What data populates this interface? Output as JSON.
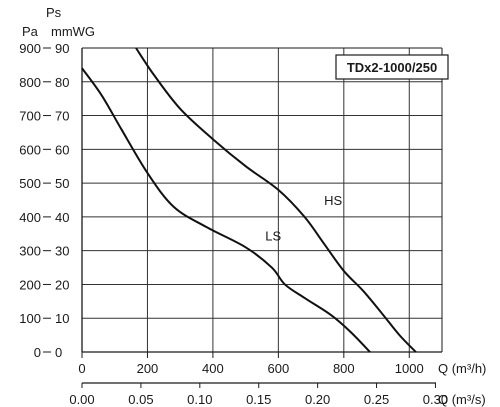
{
  "chart_data": {
    "type": "line",
    "title": "TDx2-1000/250",
    "axes": {
      "y_left_label": "Pa",
      "y_right_label": "mmWG",
      "y_label": "Ps",
      "x_label": "Q (m³/h)",
      "x2_label": "Q (m³/s)"
    },
    "x_ticks": [
      "0",
      "200",
      "400",
      "600",
      "800",
      "1000"
    ],
    "x2_ticks": [
      "0.00",
      "0.05",
      "0.10",
      "0.15",
      "0.20",
      "0.25",
      "0.30"
    ],
    "y_ticks_pa": [
      "0",
      "100",
      "200",
      "300",
      "400",
      "500",
      "600",
      "700",
      "800",
      "900"
    ],
    "y_ticks_mmwg": [
      "0",
      "10",
      "20",
      "30",
      "40",
      "50",
      "60",
      "70",
      "80",
      "90"
    ],
    "xlim": [
      0,
      1100
    ],
    "ylim": [
      0,
      900
    ],
    "grid": true,
    "series": [
      {
        "name": "HS",
        "x": [
          165,
          220,
          300,
          400,
          500,
          600,
          680,
          740,
          800,
          860,
          920,
          970,
          1020
        ],
        "y": [
          900,
          820,
          720,
          630,
          550,
          480,
          400,
          320,
          240,
          180,
          110,
          50,
          0
        ]
      },
      {
        "name": "LS",
        "x": [
          0,
          60,
          120,
          200,
          280,
          380,
          500,
          580,
          620,
          680,
          760,
          820,
          880
        ],
        "y": [
          840,
          760,
          660,
          530,
          430,
          370,
          310,
          250,
          200,
          160,
          110,
          60,
          0
        ]
      }
    ],
    "label_points": {
      "HS": {
        "x": 740,
        "y": 435
      },
      "LS": {
        "x": 560,
        "y": 330
      }
    }
  }
}
